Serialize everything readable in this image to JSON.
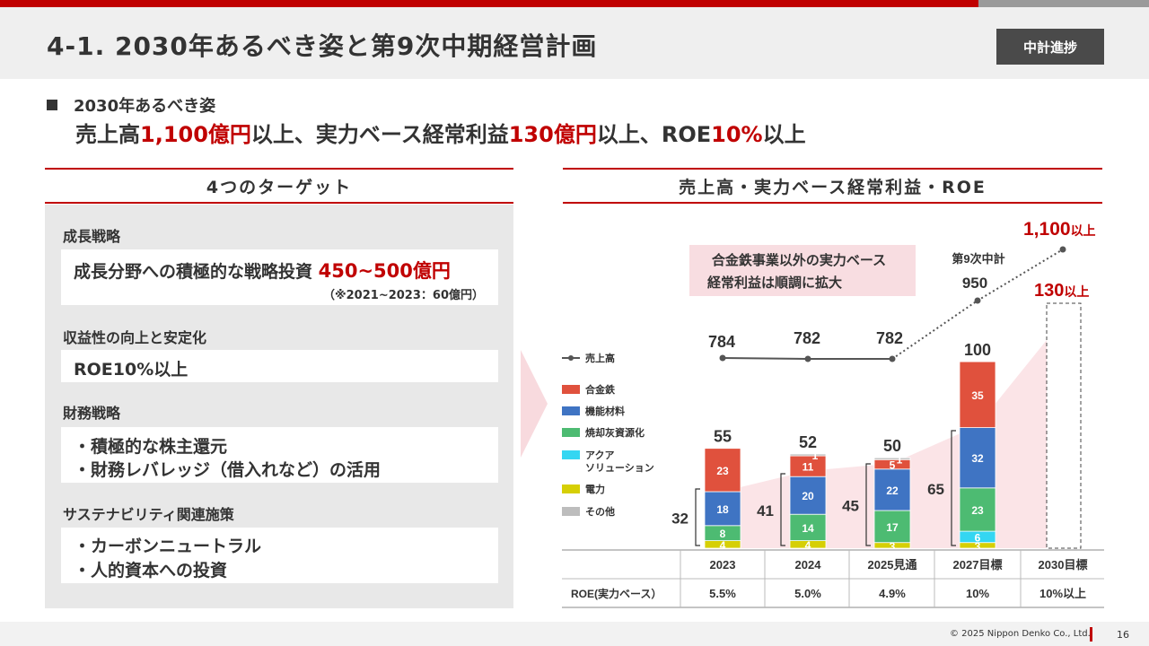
{
  "header": {
    "title": "4-1. 2030年あるべき姿と第9次中期経営計画",
    "badge": "中計進捗"
  },
  "vision": {
    "label": "2030年あるべき姿",
    "p1": "売上高",
    "v1": "1,100億円",
    "p2": "以上、実力ベース経常利益",
    "v2": "130億円",
    "p3": "以上、ROE",
    "v3": "10%",
    "p4": "以上"
  },
  "left_panel": {
    "title": "4つのターゲット",
    "sections": [
      {
        "title": "成長戦略",
        "text_prefix": "成長分野への積極的な戦略投資 ",
        "text_highlight": "450~500億円",
        "sub": "（※2021~2023：60億円）"
      },
      {
        "title": "収益性の向上と安定化",
        "text_highlight": "ROE10%以上"
      },
      {
        "title": "財務戦略",
        "items": [
          "・積極的な株主還元",
          "・財務レバレッジ（借入れなど）の活用"
        ]
      },
      {
        "title": "サステナビリティ関連施策",
        "items": [
          "・カーボンニュートラル",
          "・人的資本への投資"
        ]
      }
    ]
  },
  "right_panel": {
    "title": "売上高・実力ベース経常利益・ROE",
    "callout": [
      "合金鉄事業以外の実力ベース",
      "経常利益は順調に拡大"
    ],
    "plan_label": "第9次中計",
    "target_sales_num": "1,100",
    "target_sales_suffix": "以上",
    "target_profit_num": "130",
    "target_profit_suffix": "以上",
    "roe_label": "ROE(実力ベース）"
  },
  "chart_data": {
    "type": "bar",
    "categories": [
      "2023",
      "2024",
      "2025見通",
      "2027目標",
      "2030目標"
    ],
    "series": [
      {
        "name": "電力",
        "values": [
          4,
          4,
          3,
          3,
          null
        ]
      },
      {
        "name": "アクア\nソリューション",
        "values": [
          0,
          0,
          0,
          6,
          null
        ]
      },
      {
        "name": "焼却灰資源化",
        "values": [
          8,
          14,
          17,
          23,
          null
        ]
      },
      {
        "name": "機能材料",
        "values": [
          18,
          20,
          22,
          32,
          null
        ]
      },
      {
        "name": "合金鉄",
        "values": [
          23,
          11,
          5,
          35,
          null
        ]
      },
      {
        "name": "その他",
        "values": [
          0,
          1,
          1,
          0,
          null
        ]
      }
    ],
    "bar_label_overrides": [
      [
        "4",
        "",
        "8",
        "18",
        "23",
        ""
      ],
      [
        "4",
        "",
        "14",
        "20",
        "11",
        "1"
      ],
      [
        "3",
        "",
        "17",
        "22",
        "5",
        "1"
      ],
      [
        "3",
        "6",
        "23",
        "32",
        "35",
        ""
      ],
      []
    ],
    "totals": [
      "55",
      "52",
      "50",
      "100",
      "130以上"
    ],
    "non_alloy_totals": [
      "32",
      "41",
      "45",
      "65",
      ""
    ],
    "sales": {
      "name": "売上高",
      "values": [
        784,
        782,
        782,
        950,
        1100
      ],
      "labels": [
        "784",
        "782",
        "782",
        "950",
        "1,100以上"
      ]
    },
    "roe": [
      "5.5%",
      "5.0%",
      "4.9%",
      "10%",
      "10%以上"
    ],
    "legend": [
      "売上高",
      "合金鉄",
      "機能材料",
      "焼却灰資源化",
      "アクア\nソリューション",
      "電力",
      "その他"
    ],
    "colors": {
      "合金鉄": "#e0513d",
      "機能材料": "#3f74c3",
      "焼却灰資源化": "#4dbb72",
      "アクア\nソリューション": "#34d6f2",
      "電力": "#d6cf05",
      "その他": "#bdbdbd",
      "売上高": "#555555",
      "accent": "#c00000"
    }
  },
  "footer": {
    "copyright": "© 2025 Nippon Denko Co., Ltd.",
    "page": "16"
  }
}
